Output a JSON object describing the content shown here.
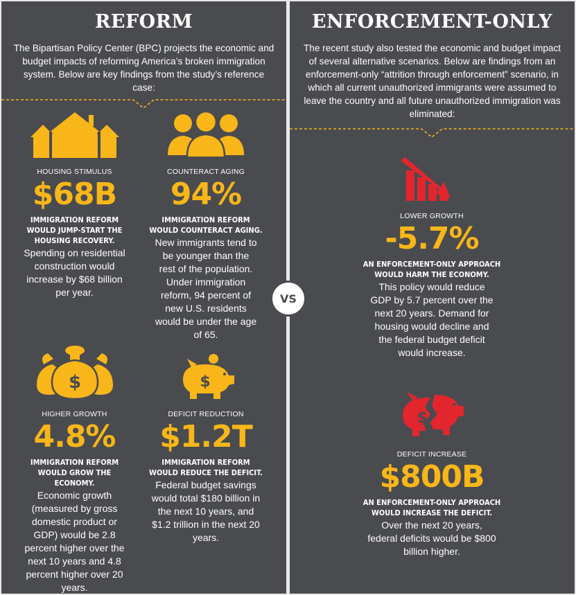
{
  "colors": {
    "panel_bg": "#4a4b4f",
    "accent_yellow": "#f8b618",
    "accent_red": "#e3262e",
    "text": "#ffffff"
  },
  "reform": {
    "title": "REFORM",
    "intro": "The Bipartisan Policy Center (BPC) projects the economic and budget impacts of reforming America’s broken immigration system. Below are key findings from the study’s reference case:",
    "items": [
      {
        "icon": "houses-icon",
        "label": "HOUSING STIMULUS",
        "value": "$68B",
        "heading": "IMMIGRATION REFORM WOULD JUMP-START THE HOUSING RECOVERY.",
        "body": "Spending on residential construction would increase by $68 billion per year."
      },
      {
        "icon": "people-icon",
        "label": "COUNTERACT AGING",
        "value": "94%",
        "heading": "IMMIGRATION REFORM WOULD COUNTERACT AGING.",
        "body": "New immigrants tend to be younger than the rest of the population. Under immigration reform, 94 percent of new U.S. residents would be under the age of 65."
      },
      {
        "icon": "money-bags-icon",
        "label": "HIGHER GROWTH",
        "value": "4.8%",
        "heading": "IMMIGRATION REFORM WOULD GROW THE ECONOMY.",
        "body": "Economic growth (measured by gross domestic product or GDP) would be 2.8 percent higher over the next 10 years and 4.8 percent higher over 20 years."
      },
      {
        "icon": "piggy-bank-icon",
        "label": "DEFICIT REDUCTION",
        "value": "$1.2T",
        "heading": "IMMIGRATION REFORM WOULD REDUCE THE DEFICIT.",
        "body": "Federal budget savings would total $180 billion in the next 10 years, and $1.2 trillion in the next 20 years."
      }
    ]
  },
  "vs_label": "VS",
  "enforcement": {
    "title": "ENFORCEMENT-ONLY",
    "intro": "The recent study also tested the economic and budget impact of several alternative scenarios. Below are findings from an enforcement-only “attrition through enforcement” scenario, in which all current unauthorized immigrants were assumed to leave the country and all future unauthorized immigration was eliminated:",
    "items": [
      {
        "icon": "declining-chart-icon",
        "label": "LOWER GROWTH",
        "value": "-5.7%",
        "heading": "AN ENFORCEMENT-ONLY APPROACH WOULD HARM THE ECONOMY.",
        "body": "This policy would reduce GDP by 5.7 percent over the next 20 years. Demand for housing would decline and the federal budget deficit would increase."
      },
      {
        "icon": "broken-piggy-bank-icon",
        "label": "DEFICIT INCREASE",
        "value": "$800B",
        "heading": "AN ENFORCEMENT-ONLY APPROACH WOULD INCREASE THE DEFICIT.",
        "body": "Over the next 20 years, federal deficits would be $800 billion higher."
      }
    ]
  }
}
